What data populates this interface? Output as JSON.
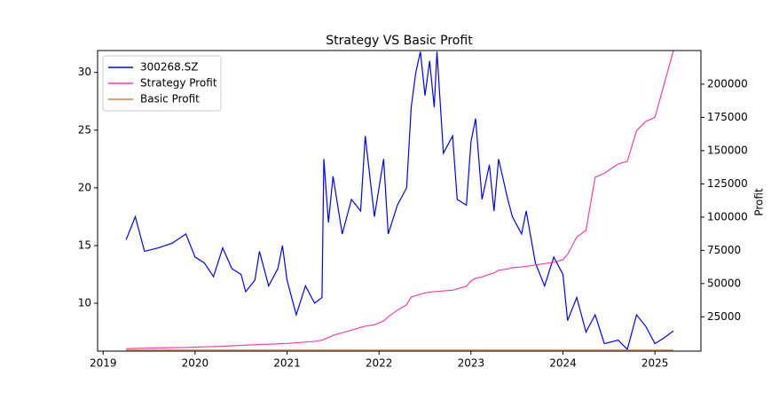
{
  "chart_data": {
    "type": "line",
    "title": "Strategy VS Basic Profit",
    "y2label": "Profit",
    "x": [
      2019.25,
      2019.35,
      2019.45,
      2019.6,
      2019.75,
      2019.9,
      2020.0,
      2020.1,
      2020.2,
      2020.3,
      2020.4,
      2020.5,
      2020.55,
      2020.65,
      2020.7,
      2020.8,
      2020.9,
      2020.95,
      2021.0,
      2021.1,
      2021.2,
      2021.3,
      2021.38,
      2021.4,
      2021.45,
      2021.5,
      2021.6,
      2021.7,
      2021.8,
      2021.85,
      2021.95,
      2022.05,
      2022.1,
      2022.2,
      2022.3,
      2022.35,
      2022.4,
      2022.45,
      2022.5,
      2022.55,
      2022.6,
      2022.63,
      2022.7,
      2022.8,
      2022.85,
      2022.95,
      2023.0,
      2023.05,
      2023.12,
      2023.2,
      2023.25,
      2023.3,
      2023.4,
      2023.45,
      2023.55,
      2023.6,
      2023.7,
      2023.8,
      2023.9,
      2024.0,
      2024.05,
      2024.15,
      2024.25,
      2024.35,
      2024.45,
      2024.6,
      2024.7,
      2024.8,
      2024.9,
      2025.0,
      2025.1,
      2025.2
    ],
    "series": [
      {
        "name": "300268.SZ",
        "color": "#0000ff",
        "axis": "y",
        "values": [
          15.5,
          17.5,
          14.5,
          14.8,
          15.2,
          16.0,
          14.0,
          13.5,
          12.3,
          14.8,
          13.0,
          12.5,
          11.0,
          12.0,
          14.5,
          11.5,
          13.0,
          15.0,
          12.0,
          9.0,
          11.5,
          10.0,
          10.5,
          22.5,
          17.0,
          21.0,
          16.0,
          19.0,
          18.0,
          24.5,
          17.5,
          22.5,
          16.0,
          18.5,
          20.0,
          27.0,
          30.0,
          31.8,
          28.0,
          31.0,
          27.0,
          31.8,
          23.0,
          24.5,
          19.0,
          18.5,
          24.0,
          26.0,
          19.0,
          22.0,
          18.0,
          22.5,
          19.0,
          17.5,
          16.0,
          18.0,
          13.5,
          11.5,
          14.0,
          12.5,
          8.5,
          10.5,
          7.5,
          9.0,
          6.5,
          6.8,
          6.0,
          9.0,
          8.0,
          6.5,
          7.0,
          7.6
        ]
      },
      {
        "name": "Strategy Profit",
        "color": "#f040a8",
        "axis": "y2",
        "values": [
          1000,
          1200,
          1400,
          1600,
          1800,
          2000,
          2200,
          2400,
          2600,
          2900,
          3200,
          3500,
          3700,
          4000,
          4200,
          4400,
          4700,
          4900,
          5000,
          5500,
          6000,
          6500,
          7500,
          8000,
          9500,
          11000,
          13000,
          15000,
          17000,
          18000,
          19000,
          22000,
          25000,
          30000,
          34000,
          40000,
          41000,
          42000,
          43000,
          43500,
          44000,
          44000,
          44500,
          45000,
          46000,
          48000,
          52000,
          54000,
          55000,
          57000,
          58000,
          60000,
          61000,
          62000,
          62500,
          63000,
          64000,
          65000,
          66000,
          68000,
          72000,
          85000,
          90000,
          130000,
          133000,
          140000,
          142000,
          165000,
          172000,
          175000,
          200000,
          225000
        ]
      },
      {
        "name": "Basic Profit",
        "color": "#e07b39",
        "axis": "y2",
        "values": [
          0,
          0,
          0,
          0,
          0,
          0,
          0,
          0,
          0,
          0,
          0,
          0,
          0,
          0,
          0,
          0,
          0,
          0,
          0,
          0,
          0,
          0,
          0,
          0,
          0,
          0,
          0,
          0,
          0,
          0,
          0,
          0,
          0,
          0,
          0,
          0,
          0,
          0,
          0,
          0,
          0,
          0,
          0,
          0,
          0,
          0,
          0,
          0,
          0,
          0,
          0,
          0,
          0,
          0,
          0,
          0,
          0,
          0,
          0,
          0,
          0,
          0,
          0,
          0,
          0,
          0,
          0,
          0,
          0,
          0,
          0,
          0
        ]
      }
    ],
    "xlim": [
      2018.94,
      2025.5
    ],
    "xticks": [
      2019,
      2020,
      2021,
      2022,
      2023,
      2024,
      2025
    ],
    "ylim": [
      5.85,
      31.9
    ],
    "yticks": [
      10,
      15,
      20,
      25,
      30
    ],
    "y2lim": [
      -800,
      225300
    ],
    "y2ticks": [
      25000,
      50000,
      75000,
      100000,
      125000,
      150000,
      175000,
      200000
    ],
    "legend": "upper left"
  }
}
